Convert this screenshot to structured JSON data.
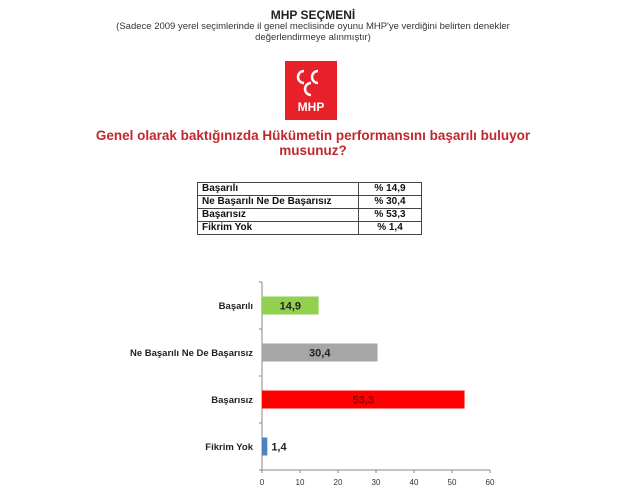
{
  "header": {
    "title": "MHP SEÇMENİ",
    "subtitle_line1": "(Sadece 2009 yerel seçimlerinde il genel meclisinde oyunu MHP'ye verdiğini belirten denekler",
    "subtitle_line2": "değerlendirmeye alınmıştır)"
  },
  "logo": {
    "text": "MHP",
    "color": "#e8202a"
  },
  "question": {
    "line1": "Genel olarak baktığınızda Hükümetin performansını başarılı buluyor",
    "line2": "musunuz?"
  },
  "table": [
    {
      "label": "Başarılı",
      "value": "% 14,9"
    },
    {
      "label": "Ne Başarılı Ne De Başarısız",
      "value": "% 30,4"
    },
    {
      "label": "Başarısız",
      "value": "% 53,3"
    },
    {
      "label": "Fikrim Yok",
      "value": "% 1,4"
    }
  ],
  "chart_data": {
    "type": "bar",
    "orientation": "horizontal",
    "categories": [
      "Başarılı",
      "Ne Başarılı Ne De Başarısız",
      "Başarısız",
      "Fikrim Yok"
    ],
    "values": [
      14.9,
      30.4,
      53.3,
      1.4
    ],
    "data_labels": [
      "14,9",
      "30,4",
      "53,3",
      "1,4"
    ],
    "colors": [
      "#92d050",
      "#a6a6a6",
      "#ff0000",
      "#4f81bd"
    ],
    "xlim": [
      0,
      60
    ],
    "xticks": [
      0,
      10,
      20,
      30,
      40,
      50,
      60
    ],
    "grid": false
  }
}
